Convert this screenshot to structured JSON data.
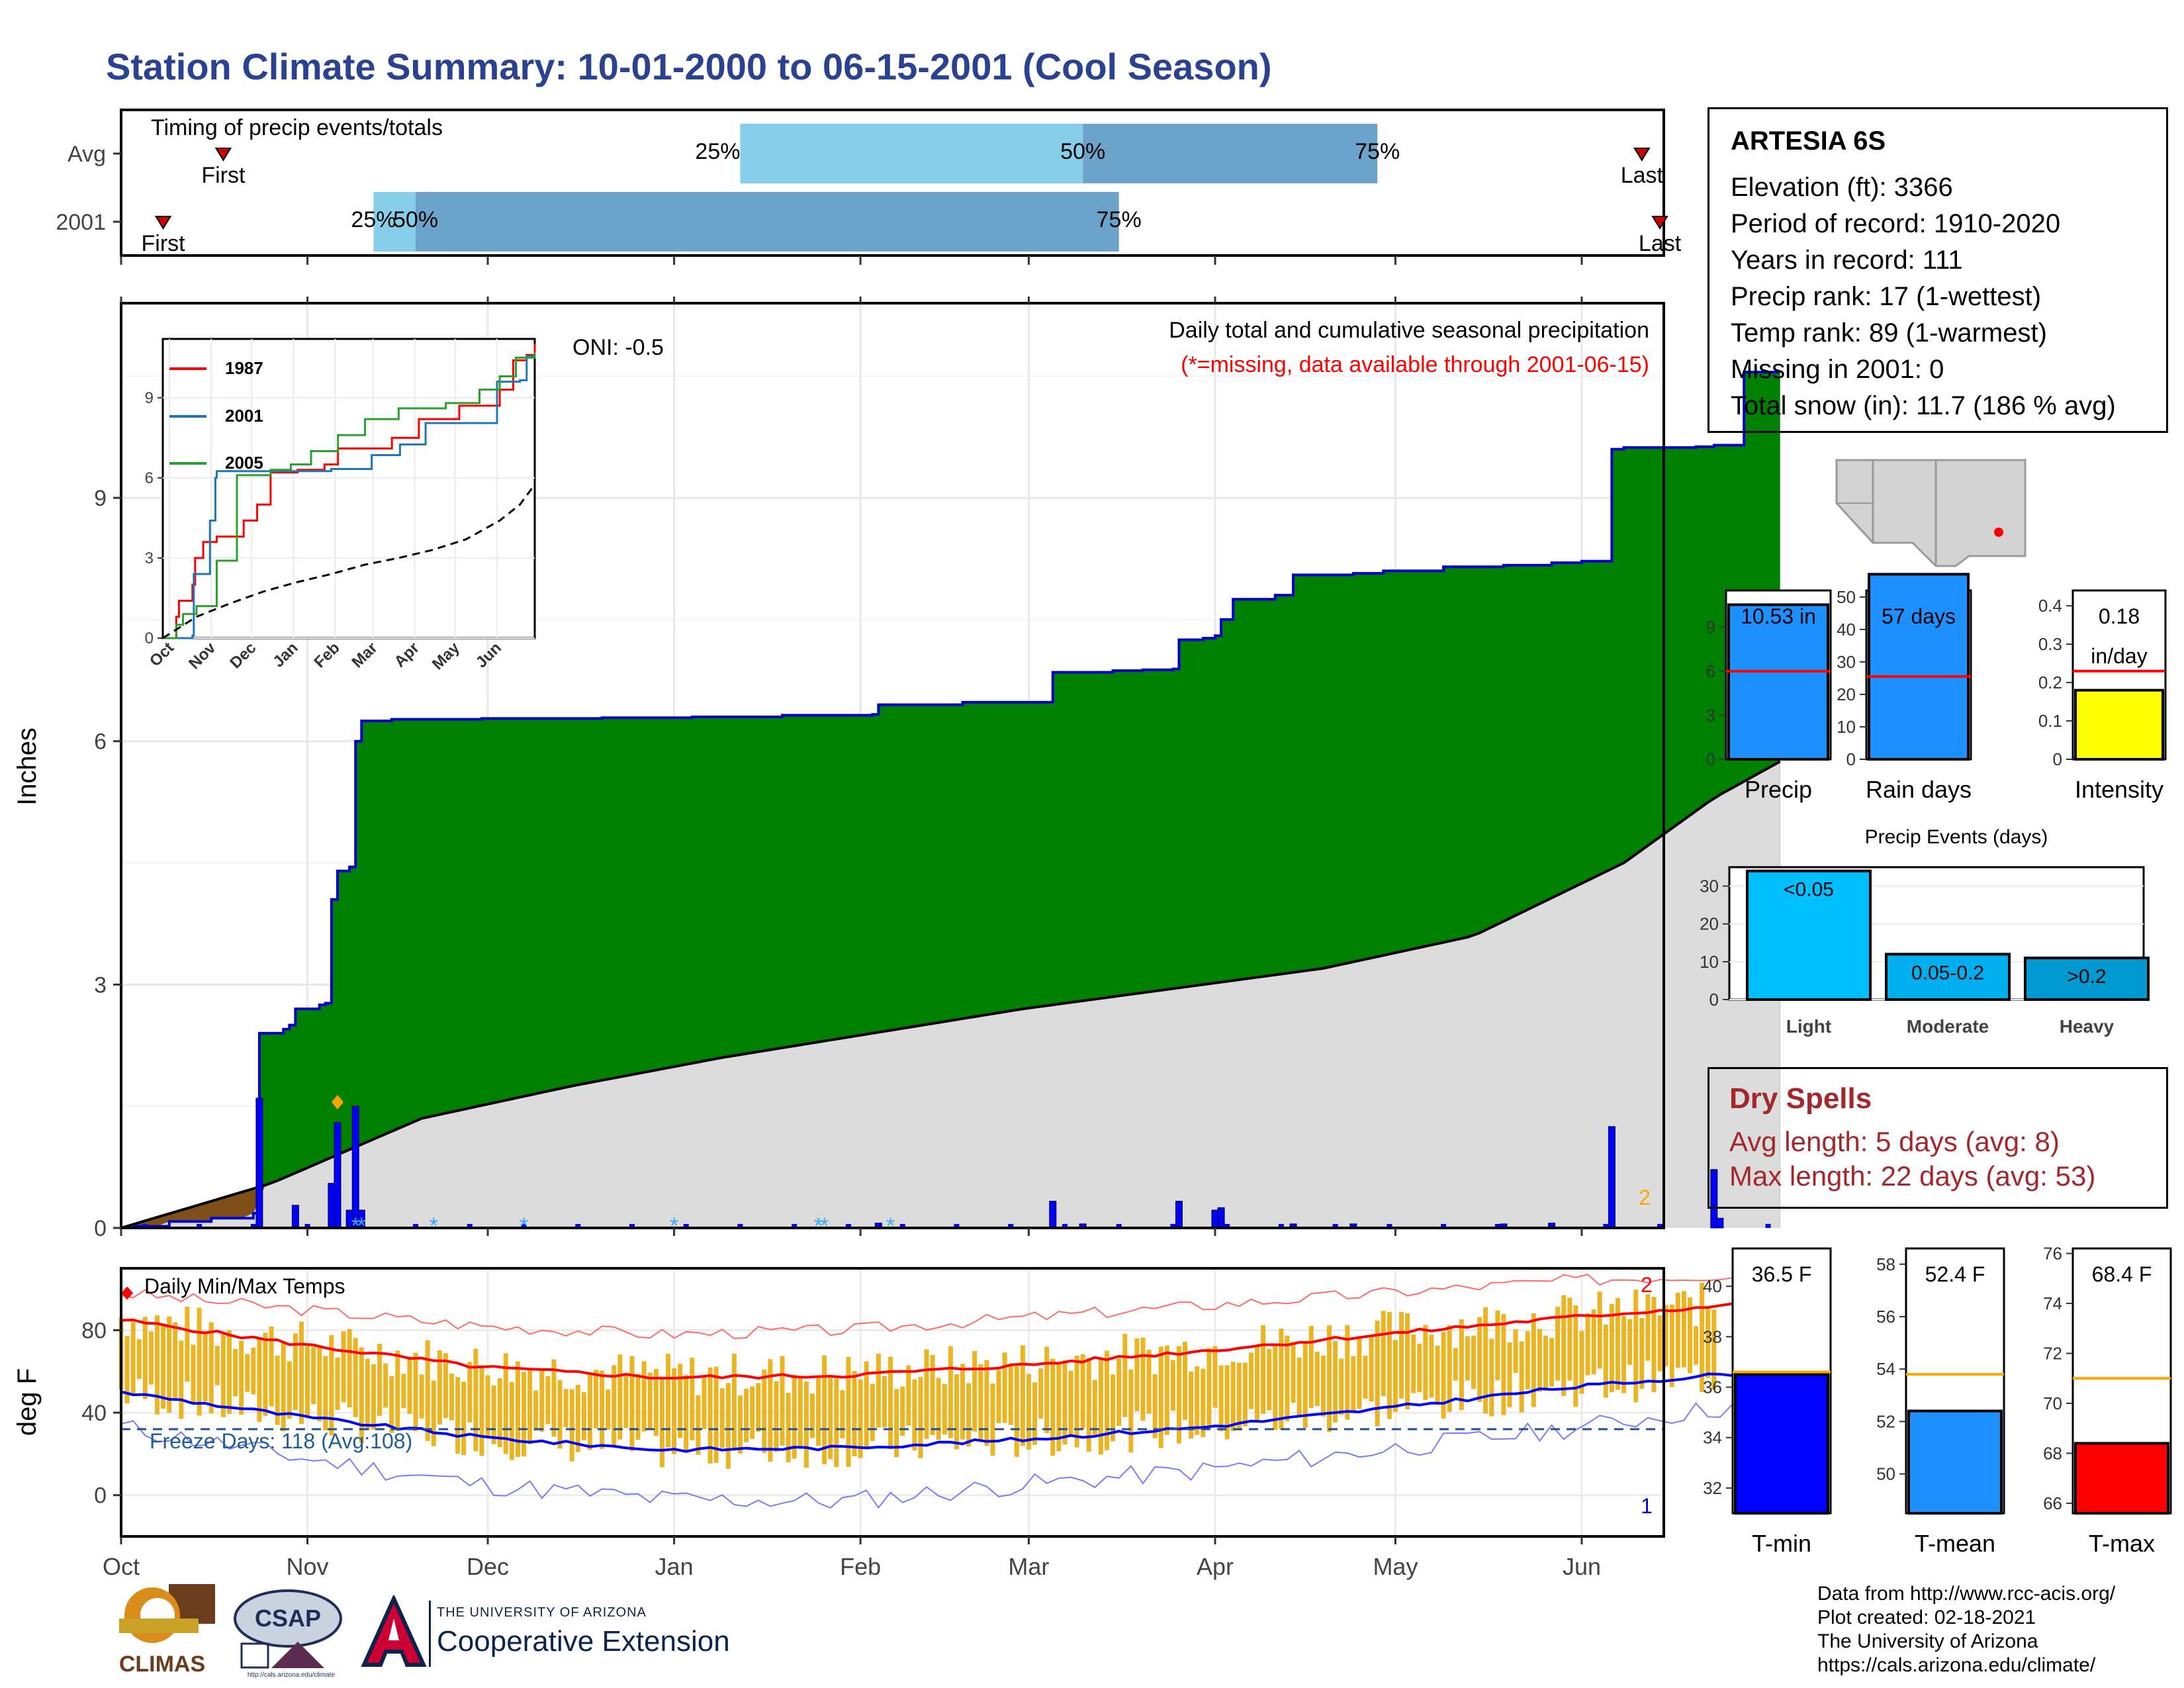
{
  "title": "Station Climate Summary: 10-01-2000 to 06-15-2001 (Cool Season)",
  "station": {
    "name": "ARTESIA 6S",
    "lines": [
      "Elevation (ft): 3366",
      "Period of record: 1910-2020",
      "Years in record: 111",
      "Precip rank: 17 (1-wettest)",
      "Temp rank: 89 (1-warmest)",
      "Missing in 2001: 0",
      "Total snow (in): 11.7 (186 % avg)"
    ]
  },
  "dry_spells": {
    "title": "Dry Spells",
    "avg_line": "Avg length: 5 days (avg: 8)",
    "max_line": "Max length: 22 days (avg: 53)"
  },
  "credits": {
    "line1": "Data from http://www.rcc-acis.org/",
    "line2": "Plot created: 02-18-2021",
    "line3": "The University of Arizona",
    "line4": "https://cals.arizona.edu/climate/"
  },
  "logos": {
    "climas": "CLIMAS",
    "csap": "CSAP",
    "csap_url": "http://cals.arizona.edu/climate",
    "coop_small": "THE UNIVERSITY OF ARIZONA",
    "coop_big": "Cooperative Extension"
  },
  "colors": {
    "title": "#2a4290",
    "cum_2001": "#008000",
    "cum_line": "#0000cd",
    "climatology": "#dcdcdc",
    "deficit": "#7f4f1a",
    "daily_bar": "#0000ff",
    "temp_bar": "#eab422",
    "tmax_line": "#ff0000",
    "tmin_line": "#0000ff",
    "freeze_line": "#1f4e99",
    "timing_light": "#87ceeb",
    "timing_dark": "#6ca3cb",
    "dry_spell": "#a3272c"
  },
  "chart_data": [
    {
      "id": "timing",
      "type": "bar",
      "title": "Timing of precip events/totals",
      "rows": [
        {
          "label": "Avg",
          "first": "Oct 18",
          "q25": "Jan 12",
          "q50": "Mar 10",
          "q75": "Apr 28",
          "last": "Jun 11",
          "labels": {
            "first": "First",
            "q25": "25%",
            "q50": "50%",
            "q75": "75%",
            "last": "Last"
          }
        },
        {
          "label": "2001",
          "first": "Oct 8",
          "q25": "Nov 12",
          "q50": "Nov 19",
          "q75": "Mar 16",
          "last": "Jun 14",
          "labels": {
            "first": "First",
            "q25": "25%",
            "q50": "50%",
            "q75": "75%",
            "last": "Last"
          }
        }
      ]
    },
    {
      "id": "precip",
      "type": "area",
      "ylabel": "Inches",
      "ylim": [
        0,
        11.4
      ],
      "yticks": [
        0,
        3,
        6,
        9
      ],
      "text_top_right": "Daily total and cumulative seasonal precipitation",
      "text_missing": "(*=missing, data available through 2001-06-15)",
      "oni": "ONI: -0.5",
      "x_axis": [
        "Oct",
        "Nov",
        "Dec",
        "Jan",
        "Feb",
        "Mar",
        "Apr",
        "May",
        "Jun"
      ],
      "end_count_label": "2",
      "cumulative_2001": [
        [
          0,
          0
        ],
        [
          2,
          0.02
        ],
        [
          8,
          0.08
        ],
        [
          15,
          0.12
        ],
        [
          22,
          0.18
        ],
        [
          23,
          2.4
        ],
        [
          27,
          2.45
        ],
        [
          28,
          2.5
        ],
        [
          29,
          2.7
        ],
        [
          33,
          2.75
        ],
        [
          34,
          2.77
        ],
        [
          35,
          4.05
        ],
        [
          36,
          4.4
        ],
        [
          38,
          4.45
        ],
        [
          39,
          6.0
        ],
        [
          40,
          6.25
        ],
        [
          45,
          6.27
        ],
        [
          60,
          6.28
        ],
        [
          80,
          6.29
        ],
        [
          95,
          6.3
        ],
        [
          110,
          6.32
        ],
        [
          125,
          6.33
        ],
        [
          126,
          6.45
        ],
        [
          140,
          6.48
        ],
        [
          155,
          6.85
        ],
        [
          165,
          6.87
        ],
        [
          170,
          6.88
        ],
        [
          175,
          6.89
        ],
        [
          176,
          7.25
        ],
        [
          180,
          7.27
        ],
        [
          182,
          7.3
        ],
        [
          183,
          7.5
        ],
        [
          185,
          7.75
        ],
        [
          192,
          7.8
        ],
        [
          195,
          8.05
        ],
        [
          205,
          8.07
        ],
        [
          210,
          8.1
        ],
        [
          220,
          8.15
        ],
        [
          230,
          8.17
        ],
        [
          238,
          8.2
        ],
        [
          243,
          8.22
        ],
        [
          248,
          9.6
        ],
        [
          250,
          9.62
        ],
        [
          262,
          9.63
        ],
        [
          265,
          9.65
        ],
        [
          270,
          10.55
        ],
        [
          276,
          10.55
        ]
      ],
      "climatology": [
        [
          0,
          0
        ],
        [
          25,
          0.55
        ],
        [
          50,
          1.35
        ],
        [
          75,
          1.75
        ],
        [
          100,
          2.1
        ],
        [
          125,
          2.4
        ],
        [
          150,
          2.7
        ],
        [
          175,
          2.95
        ],
        [
          200,
          3.2
        ],
        [
          225,
          3.6
        ],
        [
          250,
          4.5
        ],
        [
          265,
          5.3
        ],
        [
          276,
          5.75
        ]
      ],
      "daily_bars": [
        [
          23,
          1.6
        ],
        [
          29,
          0.28
        ],
        [
          35,
          0.55
        ],
        [
          36,
          1.3
        ],
        [
          38,
          0.22
        ],
        [
          39,
          1.5
        ],
        [
          40,
          0.22
        ],
        [
          126,
          0.06
        ],
        [
          155,
          0.33
        ],
        [
          160,
          0.05
        ],
        [
          176,
          0.33
        ],
        [
          182,
          0.22
        ],
        [
          183,
          0.25
        ],
        [
          195,
          0.05
        ],
        [
          205,
          0.05
        ],
        [
          230,
          0.05
        ],
        [
          238,
          0.06
        ],
        [
          248,
          1.25
        ],
        [
          265,
          0.72
        ],
        [
          266,
          0.12
        ]
      ],
      "snow_markers": [
        39,
        40,
        52,
        67,
        92,
        116,
        117,
        128
      ],
      "inset": {
        "type": "line",
        "x_axis": [
          "Oct",
          "Nov",
          "Dec",
          "Jan",
          "Feb",
          "Mar",
          "Apr",
          "May",
          "Jun"
        ],
        "yticks": [
          0,
          3,
          6,
          9
        ],
        "ylim": [
          0,
          11.2
        ],
        "series": [
          {
            "name": "1987",
            "color": "#ff0000",
            "values": [
              [
                0,
                0
              ],
              [
                10,
                0.8
              ],
              [
                12,
                1.4
              ],
              [
                22,
                2
              ],
              [
                24,
                3.0
              ],
              [
                30,
                3.6
              ],
              [
                40,
                3.8
              ],
              [
                60,
                4.4
              ],
              [
                70,
                5
              ],
              [
                80,
                6.2
              ],
              [
                100,
                6.3
              ],
              [
                120,
                6.5
              ],
              [
                130,
                7.1
              ],
              [
                170,
                7.5
              ],
              [
                190,
                8.2
              ],
              [
                220,
                8.7
              ],
              [
                250,
                9.3
              ],
              [
                260,
                10.4
              ],
              [
                270,
                10.6
              ],
              [
                276,
                11.0
              ]
            ]
          },
          {
            "name": "2001",
            "color": "#1f77b4",
            "values": [
              [
                0,
                0
              ],
              [
                22,
                0.1
              ],
              [
                23,
                2.4
              ],
              [
                35,
                4.4
              ],
              [
                39,
                6.0
              ],
              [
                40,
                6.25
              ],
              [
                125,
                6.33
              ],
              [
                155,
                6.85
              ],
              [
                176,
                7.25
              ],
              [
                195,
                8.05
              ],
              [
                248,
                9.6
              ],
              [
                265,
                9.65
              ],
              [
                270,
                10.55
              ],
              [
                276,
                10.55
              ]
            ]
          },
          {
            "name": "2005",
            "color": "#2ca02c",
            "values": [
              [
                0,
                0
              ],
              [
                10,
                0.5
              ],
              [
                15,
                0.9
              ],
              [
                25,
                1.2
              ],
              [
                40,
                2.9
              ],
              [
                55,
                6.1
              ],
              [
                80,
                6.3
              ],
              [
                95,
                6.5
              ],
              [
                110,
                7.0
              ],
              [
                130,
                7.6
              ],
              [
                150,
                8.2
              ],
              [
                175,
                8.6
              ],
              [
                210,
                8.8
              ],
              [
                235,
                9.3
              ],
              [
                250,
                9.8
              ],
              [
                262,
                10.5
              ],
              [
                276,
                10.7
              ]
            ]
          },
          {
            "name": "",
            "color": "#000000",
            "dashed": true,
            "values": [
              [
                0,
                0
              ],
              [
                25,
                0.8
              ],
              [
                50,
                1.3
              ],
              [
                75,
                1.75
              ],
              [
                100,
                2.1
              ],
              [
                125,
                2.4
              ],
              [
                150,
                2.75
              ],
              [
                175,
                3.0
              ],
              [
                200,
                3.3
              ],
              [
                225,
                3.7
              ],
              [
                250,
                4.4
              ],
              [
                265,
                5.0
              ],
              [
                276,
                5.75
              ]
            ]
          }
        ]
      }
    },
    {
      "id": "temps",
      "type": "bar",
      "title": "Daily Min/Max Temps",
      "ylabel": "deg F",
      "ylim": [
        -20,
        110
      ],
      "yticks": [
        0,
        40,
        80
      ],
      "freeze_label": "Freeze Days: 118 (Avg:108)",
      "freeze_level": 32,
      "x_axis": [
        "Oct",
        "Nov",
        "Dec",
        "Jan",
        "Feb",
        "Mar",
        "Apr",
        "May",
        "Jun"
      ],
      "end_label_max": "2",
      "end_label_min": "1",
      "avg_tmax": [
        [
          0,
          85
        ],
        [
          30,
          73
        ],
        [
          60,
          62
        ],
        [
          90,
          57
        ],
        [
          120,
          58
        ],
        [
          150,
          63
        ],
        [
          180,
          70
        ],
        [
          210,
          78
        ],
        [
          240,
          86
        ],
        [
          276,
          94
        ]
      ],
      "avg_tmin": [
        [
          0,
          50
        ],
        [
          30,
          38
        ],
        [
          60,
          28
        ],
        [
          90,
          22
        ],
        [
          120,
          23
        ],
        [
          150,
          27
        ],
        [
          180,
          33
        ],
        [
          210,
          42
        ],
        [
          240,
          52
        ],
        [
          276,
          61
        ]
      ],
      "record_max": [
        [
          0,
          98
        ],
        [
          30,
          90
        ],
        [
          60,
          82
        ],
        [
          90,
          78
        ],
        [
          120,
          80
        ],
        [
          150,
          86
        ],
        [
          180,
          92
        ],
        [
          210,
          98
        ],
        [
          240,
          104
        ],
        [
          276,
          108
        ]
      ],
      "record_min": [
        [
          0,
          33
        ],
        [
          30,
          18
        ],
        [
          60,
          5
        ],
        [
          90,
          -2
        ],
        [
          120,
          -3
        ],
        [
          150,
          5
        ],
        [
          180,
          12
        ],
        [
          210,
          22
        ],
        [
          240,
          32
        ],
        [
          276,
          46
        ]
      ]
    },
    {
      "id": "totals",
      "type": "bar",
      "panels": [
        {
          "label": "Precip",
          "value": 10.53,
          "value_label": "10.53 in",
          "avg": 6.0,
          "ylim": [
            0,
            11.5
          ],
          "yticks": [
            0,
            3,
            6,
            9
          ],
          "color": "#1e90ff"
        },
        {
          "label": "Rain days",
          "value": 57,
          "value_label": "57 days",
          "avg": 25.5,
          "ylim": [
            0,
            52
          ],
          "yticks": [
            0,
            10,
            20,
            30,
            40,
            50
          ],
          "color": "#1e90ff"
        },
        {
          "label": "Intensity",
          "value": 0.18,
          "value_label": "0.18",
          "value_label2": "in/day",
          "avg": 0.23,
          "ylim": [
            0,
            0.44
          ],
          "yticks": [
            0.0,
            0.1,
            0.2,
            0.3,
            0.4
          ],
          "color": "#ffff00"
        }
      ]
    },
    {
      "id": "events",
      "type": "bar",
      "title": "Precip Events (days)",
      "categories": [
        "Light",
        "Moderate",
        "Heavy"
      ],
      "bar_labels": [
        "<0.05",
        "0.05-0.2",
        ">0.2"
      ],
      "values": [
        34,
        12,
        11
      ],
      "colors": [
        "#00bfff",
        "#00aeef",
        "#0098d0"
      ],
      "ylim": [
        0,
        35
      ],
      "yticks": [
        0,
        10,
        20,
        30
      ]
    },
    {
      "id": "seasonal_temps",
      "type": "bar",
      "panels": [
        {
          "label": "T-min",
          "value": 36.5,
          "value_label": "36.5 F",
          "avg": 36.6,
          "ylim": [
            31,
            41.5
          ],
          "yticks": [
            32,
            34,
            36,
            38,
            40
          ],
          "color": "#0000ff"
        },
        {
          "label": "T-mean",
          "value": 52.4,
          "value_label": "52.4 F",
          "avg": 53.8,
          "ylim": [
            48.5,
            58.6
          ],
          "yticks": [
            50,
            52,
            54,
            56,
            58
          ],
          "color": "#1e90ff"
        },
        {
          "label": "T-max",
          "value": 68.4,
          "value_label": "68.4 F",
          "avg": 71.0,
          "ylim": [
            65.6,
            76.2
          ],
          "yticks": [
            66,
            68,
            70,
            72,
            74,
            76
          ],
          "color": "#ff0000"
        }
      ]
    }
  ]
}
